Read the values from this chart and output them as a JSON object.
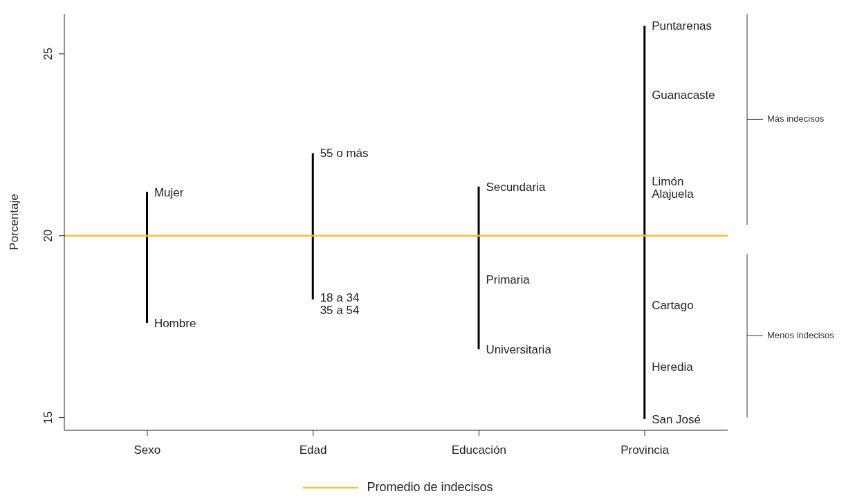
{
  "chart_data": {
    "type": "bar",
    "ylabel": "Porcentaje",
    "categories": [
      "Sexo",
      "Edad",
      "Educación",
      "Provincia"
    ],
    "base": [
      17.6,
      18.25,
      16.88,
      14.96
    ],
    "values": [
      3.6,
      4.02,
      4.47,
      10.81
    ],
    "color": "#000000",
    "ylim": [
      14.65,
      26.1
    ],
    "yticks": [
      15,
      20,
      25
    ],
    "ref_lines": [
      {
        "axis": "y",
        "value": 20,
        "label": "Promedio de indecisos",
        "color": "#f5c02f"
      }
    ],
    "legend": "bottom",
    "annotations": [
      {
        "text": "Mujer",
        "x": "Sexo",
        "y": 21.2
      },
      {
        "text": "Hombre",
        "x": "Sexo",
        "y": 17.6
      },
      {
        "text": "55 o más",
        "x": "Edad",
        "y": 22.27
      },
      {
        "text": "18 a 34",
        "x": "Edad",
        "y": 18.3
      },
      {
        "text": "35 a 54",
        "x": "Edad",
        "y": 18.25
      },
      {
        "text": "Secundaria",
        "x": "Educación",
        "y": 21.35
      },
      {
        "text": "Primaria",
        "x": "Educación",
        "y": 18.8
      },
      {
        "text": "Universitaria",
        "x": "Educación",
        "y": 16.88
      },
      {
        "text": "Puntarenas",
        "x": "Provincia",
        "y": 25.77
      },
      {
        "text": "Guanacaste",
        "x": "Provincia",
        "y": 23.87
      },
      {
        "text": "Limón",
        "x": "Provincia",
        "y": 21.5
      },
      {
        "text": "Alajuela",
        "x": "Provincia",
        "y": 21.16
      },
      {
        "text": "Cartago",
        "x": "Provincia",
        "y": 18.1
      },
      {
        "text": "Heredia",
        "x": "Provincia",
        "y": 16.4
      },
      {
        "text": "San José",
        "x": "Provincia",
        "y": 14.96
      },
      "Más indecisos",
      "Menos indecisos"
    ]
  }
}
